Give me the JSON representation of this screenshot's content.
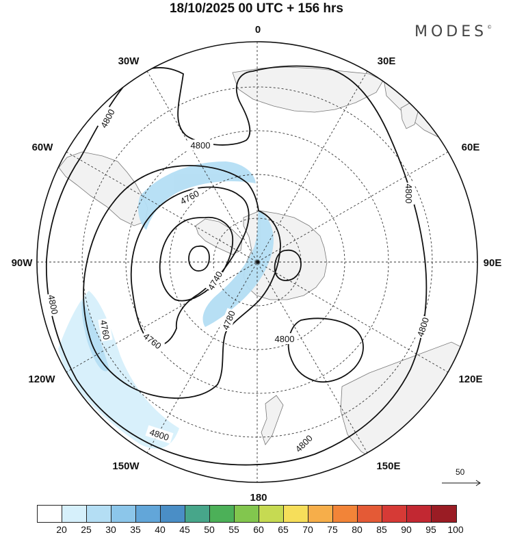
{
  "title": "18/10/2025  00 UTC  + 156 hrs",
  "brand": "MODES",
  "brand_mark": "©",
  "longitude_labels": [
    {
      "id": "lon-0",
      "text": "0",
      "lon": 0
    },
    {
      "id": "lon-30e",
      "text": "30E",
      "lon": 30
    },
    {
      "id": "lon-60e",
      "text": "60E",
      "lon": 60
    },
    {
      "id": "lon-90e",
      "text": "90E",
      "lon": 90
    },
    {
      "id": "lon-120e",
      "text": "120E",
      "lon": 120
    },
    {
      "id": "lon-150e",
      "text": "150E",
      "lon": 150
    },
    {
      "id": "lon-180",
      "text": "180",
      "lon": 180
    },
    {
      "id": "lon-150w",
      "text": "150W",
      "lon": -150
    },
    {
      "id": "lon-120w",
      "text": "120W",
      "lon": -120
    },
    {
      "id": "lon-90w",
      "text": "90W",
      "lon": -90
    },
    {
      "id": "lon-60w",
      "text": "60W",
      "lon": -60
    },
    {
      "id": "lon-30w",
      "text": "30W",
      "lon": -30
    }
  ],
  "contour_labels": [
    {
      "text": "4800"
    },
    {
      "text": "4800"
    },
    {
      "text": "4800"
    },
    {
      "text": "4800"
    },
    {
      "text": "4800"
    },
    {
      "text": "4800"
    },
    {
      "text": "4800"
    },
    {
      "text": "4800"
    },
    {
      "text": "4760"
    },
    {
      "text": "4760"
    },
    {
      "text": "4760"
    },
    {
      "text": "4740"
    },
    {
      "text": "4780"
    }
  ],
  "wind_scale": {
    "value": "50"
  },
  "colorbar": {
    "levels": [
      "20",
      "25",
      "30",
      "35",
      "40",
      "45",
      "50",
      "55",
      "60",
      "65",
      "70",
      "75",
      "80",
      "85",
      "90",
      "95",
      "100"
    ],
    "colors": [
      "#ffffff",
      "#d6f0fb",
      "#b4def4",
      "#8cc6ea",
      "#62a6d9",
      "#4a8ec6",
      "#47a68a",
      "#4cb058",
      "#82c64e",
      "#c6da52",
      "#f6de5a",
      "#f6ae4a",
      "#f28438",
      "#e45a36",
      "#d63a36",
      "#c22832",
      "#9a1c24"
    ]
  }
}
